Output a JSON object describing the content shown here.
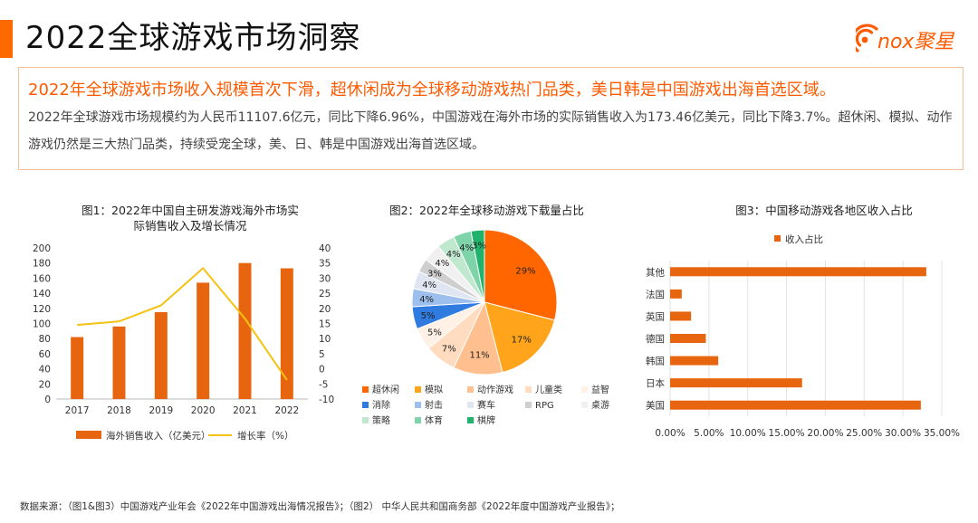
{
  "page": {
    "title": "2022全球游戏市场洞察",
    "logo_text": "nox聚星",
    "accent_color": "#ff6a00"
  },
  "summary": {
    "headline": "2022年全球游戏市场收入规模首次下滑，超休闲成为全球移动游戏热门品类，美日韩是中国游戏出海首选区域。",
    "body": "2022年全球游戏市场规模约为人民币11107.6亿元，同比下降6.96%，中国游戏在海外市场的实际销售收入为173.46亿美元，同比下降3.7%。超休闲、模拟、动作游戏仍然是三大热门品类，持续受宠全球，美、日、韩是中国游戏出海首选区域。"
  },
  "source_note": "数据来源：（图1&图3）中国游戏产业年会《2022年中国游戏出海情况报告》；（图2） 中华人民共和国商务部《2022年度中国游戏产业报告》；",
  "chart_data": [
    {
      "type": "bar",
      "title": "图1：2022年中国自主研发游戏海外市场实际销售收入及增长情况",
      "title_lines": [
        "图1：2022年中国自主研发游戏海外市场实",
        "际销售收入及增长情况"
      ],
      "categories": [
        "2017",
        "2018",
        "2019",
        "2020",
        "2021",
        "2022"
      ],
      "series": [
        {
          "name": "海外销售收入（亿美元）",
          "kind": "bar",
          "axis": "left",
          "color": "#e8650f",
          "values": [
            82,
            96,
            115,
            154,
            180,
            173
          ]
        },
        {
          "name": "增长率（%）",
          "kind": "line",
          "axis": "right",
          "color": "#f5c211",
          "values": [
            14.5,
            15.7,
            21,
            33.3,
            16.6,
            -3.7
          ]
        }
      ],
      "ylim": [
        0,
        200
      ],
      "yticks": [
        0,
        20,
        40,
        60,
        80,
        100,
        120,
        140,
        160,
        180,
        200
      ],
      "y2lim": [
        -10,
        40
      ],
      "y2ticks": [
        -10,
        -5,
        0,
        5,
        10,
        15,
        20,
        25,
        30,
        35,
        40
      ],
      "legend": "bottom",
      "grid": false
    },
    {
      "type": "pie",
      "title": "图2：2022年全球移动游戏下载量占比",
      "slices": [
        {
          "name": "超休闲",
          "value": 29,
          "label": "29%",
          "color": "#ff6600"
        },
        {
          "name": "模拟",
          "value": 17,
          "label": "17%",
          "color": "#ffa41b"
        },
        {
          "name": "动作游戏",
          "value": 11,
          "label": "11%",
          "color": "#ffbf8f"
        },
        {
          "name": "儿童类",
          "value": 7,
          "label": "7%",
          "color": "#ffdcc0"
        },
        {
          "name": "益智",
          "value": 5,
          "label": "5%",
          "color": "#fff1e6"
        },
        {
          "name": "消除",
          "value": 5,
          "label": "5%",
          "color": "#2f7be0"
        },
        {
          "name": "射击",
          "value": 4,
          "label": "4%",
          "color": "#9dbfee"
        },
        {
          "name": "赛车",
          "value": 4,
          "label": "4%",
          "color": "#dfe6f2"
        },
        {
          "name": "RPG",
          "value": 3,
          "label": "3%",
          "color": "#cfcfcf"
        },
        {
          "name": "桌游",
          "value": 4,
          "label": "4%",
          "color": "#f0f0f0"
        },
        {
          "name": "策略",
          "value": 4,
          "label": "4%",
          "color": "#bfe8cf"
        },
        {
          "name": "体育",
          "value": 4,
          "label": "4%",
          "color": "#7ed3a8"
        },
        {
          "name": "棋牌",
          "value": 3,
          "label": "3%",
          "color": "#21b36b"
        }
      ],
      "legend": "bottom"
    },
    {
      "type": "bar",
      "orientation": "horizontal",
      "title": "图3：中国移动游戏各地区收入占比",
      "series": [
        {
          "name": "收入占比",
          "color": "#e8650f"
        }
      ],
      "categories": [
        "其他",
        "法国",
        "英国",
        "德国",
        "韩国",
        "日本",
        "美国"
      ],
      "values": [
        33.0,
        1.5,
        2.7,
        4.6,
        6.2,
        17.0,
        32.3
      ],
      "xlim": [
        0,
        35
      ],
      "xticks": [
        "0.00%",
        "5.00%",
        "10.00%",
        "15.00%",
        "20.00%",
        "25.00%",
        "30.00%",
        "35.00%"
      ],
      "legend": "top",
      "grid": true
    }
  ]
}
